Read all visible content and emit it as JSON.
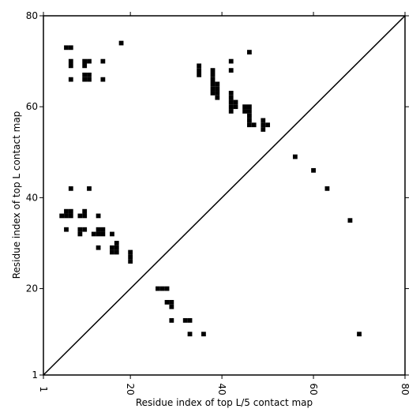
{
  "chart_data": {
    "type": "heatmap",
    "xlabel": "Residue index of top L/5 contact map",
    "ylabel": "Residue index of top L contact map",
    "xlim": [
      1,
      80
    ],
    "ylim": [
      1,
      80
    ],
    "x_ticks": [
      1,
      20,
      40,
      60,
      80
    ],
    "y_ticks": [
      1,
      20,
      40,
      60,
      80
    ],
    "x_tick_labels": [
      "1",
      "20",
      "40",
      "60",
      "80"
    ],
    "y_tick_labels": [
      "1",
      "20",
      "40",
      "60",
      "80"
    ],
    "x_tick_rotation": "vertical",
    "grid": false,
    "diagonal_line": true,
    "cell_color": "#000000",
    "background_color": "#ffffff",
    "series": [
      {
        "region": "upper-left",
        "contacts": [
          [
            6,
            73
          ],
          [
            7,
            73
          ],
          [
            7,
            70
          ],
          [
            7,
            69
          ],
          [
            10,
            70
          ],
          [
            10,
            69
          ],
          [
            11,
            70
          ],
          [
            14,
            70
          ],
          [
            10,
            67
          ],
          [
            10,
            66
          ],
          [
            11,
            67
          ],
          [
            11,
            66
          ],
          [
            7,
            66
          ],
          [
            14,
            66
          ],
          [
            18,
            74
          ],
          [
            35,
            69
          ],
          [
            35,
            68
          ],
          [
            35,
            67
          ],
          [
            38,
            68
          ],
          [
            38,
            67
          ],
          [
            38,
            66
          ],
          [
            38,
            65
          ],
          [
            38,
            64
          ],
          [
            38,
            63
          ],
          [
            39,
            65
          ],
          [
            39,
            64
          ],
          [
            39,
            63
          ],
          [
            39,
            62
          ],
          [
            42,
            63
          ],
          [
            42,
            62
          ],
          [
            42,
            61
          ],
          [
            42,
            60
          ],
          [
            42,
            59
          ],
          [
            43,
            61
          ],
          [
            43,
            60
          ],
          [
            42,
            70
          ],
          [
            42,
            68
          ],
          [
            46,
            72
          ],
          [
            45,
            60
          ],
          [
            45,
            59
          ],
          [
            46,
            60
          ],
          [
            46,
            59
          ],
          [
            46,
            58
          ],
          [
            46,
            57
          ],
          [
            46,
            56
          ],
          [
            47,
            56
          ],
          [
            49,
            57
          ],
          [
            49,
            56
          ],
          [
            49,
            55
          ],
          [
            50,
            56
          ],
          [
            56,
            49
          ],
          [
            60,
            46
          ],
          [
            63,
            42
          ],
          [
            68,
            35
          ]
        ]
      },
      {
        "region": "lower-left",
        "contacts": [
          [
            7,
            42
          ],
          [
            11,
            42
          ],
          [
            5,
            36
          ],
          [
            6,
            37
          ],
          [
            6,
            36
          ],
          [
            7,
            37
          ],
          [
            7,
            36
          ],
          [
            9,
            36
          ],
          [
            10,
            37
          ],
          [
            10,
            36
          ],
          [
            13,
            36
          ],
          [
            6,
            33
          ],
          [
            9,
            33
          ],
          [
            9,
            32
          ],
          [
            10,
            33
          ],
          [
            12,
            32
          ],
          [
            13,
            33
          ],
          [
            13,
            32
          ],
          [
            14,
            33
          ],
          [
            14,
            32
          ],
          [
            16,
            32
          ],
          [
            13,
            29
          ],
          [
            16,
            29
          ],
          [
            16,
            28
          ],
          [
            17,
            30
          ],
          [
            17,
            29
          ],
          [
            17,
            28
          ],
          [
            20,
            28
          ],
          [
            20,
            27
          ],
          [
            20,
            26
          ],
          [
            26,
            20
          ],
          [
            27,
            20
          ],
          [
            28,
            20
          ],
          [
            28,
            17
          ],
          [
            29,
            17
          ],
          [
            29,
            16
          ],
          [
            29,
            13
          ],
          [
            32,
            13
          ],
          [
            33,
            13
          ],
          [
            33,
            10
          ],
          [
            36,
            10
          ],
          [
            70,
            10
          ]
        ]
      }
    ]
  }
}
